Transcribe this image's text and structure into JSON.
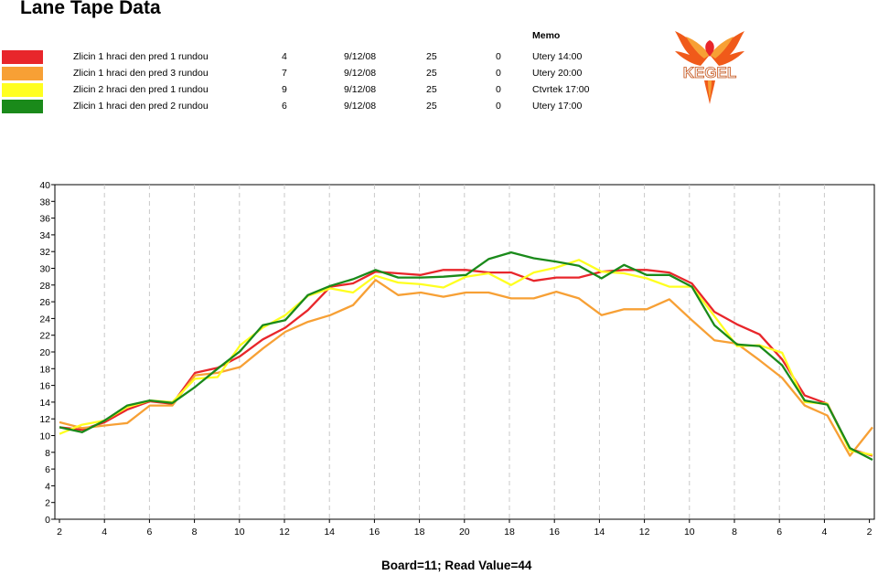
{
  "title": "Lane Tape Data",
  "memo_header": "Memo",
  "legend": [
    {
      "color": "#e8262b",
      "name": "Zlicin 1 hraci den pred 1 rundou",
      "number": "4",
      "date": "9/12/08",
      "value": "25",
      "zero": "0",
      "memo": "Utery 14:00"
    },
    {
      "color": "#f7a035",
      "name": "Zlicin 1 hraci den pred 3 rundou",
      "number": "7",
      "date": "9/12/08",
      "value": "25",
      "zero": "0",
      "memo": "Utery 20:00"
    },
    {
      "color": "#ffff20",
      "name": "Zlicin 2 hraci den pred 1 rundou",
      "number": "9",
      "date": "9/12/08",
      "value": "25",
      "zero": "0",
      "memo": "Ctvrtek 17:00"
    },
    {
      "color": "#1a8a1a",
      "name": "Zlicin 1 hraci den pred 2 rundou",
      "number": "6",
      "date": "9/12/08",
      "value": "25",
      "zero": "0",
      "memo": "Utery 17:00"
    }
  ],
  "logo": {
    "text": "KEGEL",
    "icon": "phoenix-icon"
  },
  "readout": "Board=11; Read Value=44",
  "chart_data": {
    "type": "line",
    "x_ticks": [
      "2",
      "4",
      "6",
      "8",
      "10",
      "12",
      "14",
      "16",
      "18",
      "20",
      "18",
      "16",
      "14",
      "12",
      "10",
      "8",
      "6",
      "4",
      "2"
    ],
    "ylim": [
      0,
      40
    ],
    "y_ticks": [
      0,
      2,
      4,
      6,
      8,
      10,
      12,
      14,
      16,
      18,
      20,
      22,
      24,
      26,
      28,
      30,
      32,
      34,
      36,
      38,
      40
    ],
    "grid": "dashed vertical lines at labeled boards",
    "series": [
      {
        "name": "Zlicin 1 hraci den pred 1 rundou",
        "color": "#e8262b",
        "values": [
          11,
          10.7,
          11.6,
          13.1,
          14.1,
          13.8,
          17.5,
          18.1,
          19.5,
          21.5,
          22.9,
          25,
          27.8,
          28.2,
          29.6,
          29.4,
          29.2,
          29.8,
          29.8,
          29.5,
          29.5,
          28.5,
          28.9,
          28.9,
          29.6,
          29.8,
          29.8,
          29.5,
          28.2,
          24.8,
          23.3,
          22.1,
          19.1,
          14.8,
          13.8,
          8.4,
          7.6
        ]
      },
      {
        "name": "Zlicin 1 hraci den pred 3 rundou",
        "color": "#f7a035",
        "values": [
          11.6,
          10.9,
          11.2,
          11.5,
          13.6,
          13.6,
          17.2,
          17.5,
          18.2,
          20.4,
          22.4,
          23.6,
          24.4,
          25.6,
          28.6,
          26.8,
          27.1,
          26.6,
          27.1,
          27.1,
          26.4,
          26.4,
          27.2,
          26.4,
          24.4,
          25.1,
          25.1,
          26.3,
          23.8,
          21.4,
          21,
          19,
          16.9,
          13.6,
          12.4,
          7.6,
          11
        ]
      },
      {
        "name": "Zlicin 2 hraci den pred 1 rundou",
        "color": "#ffff20",
        "values": [
          10.2,
          11.3,
          11.8,
          13.4,
          14.2,
          14,
          16.8,
          17,
          20.8,
          22.9,
          24.4,
          26.7,
          27.6,
          27.1,
          29.1,
          28.3,
          28.1,
          27.7,
          29,
          29.4,
          28,
          29.5,
          30.1,
          31,
          29.6,
          29.4,
          28.8,
          27.8,
          27.8,
          24.3,
          20.7,
          20.8,
          19.9,
          14,
          13.8,
          8.2,
          7.7
        ]
      },
      {
        "name": "Zlicin 1 hraci den pred 2 rundou",
        "color": "#1a8a1a",
        "values": [
          11,
          10.4,
          11.8,
          13.6,
          14.2,
          13.9,
          15.8,
          18,
          20.1,
          23.2,
          23.8,
          26.8,
          27.9,
          28.7,
          29.8,
          28.9,
          28.9,
          29,
          29.2,
          31.1,
          31.9,
          31.2,
          30.8,
          30.3,
          28.8,
          30.4,
          29.2,
          29.2,
          27.8,
          23.2,
          20.9,
          20.7,
          18.4,
          14.2,
          13.7,
          8.5,
          7.1
        ]
      }
    ]
  }
}
